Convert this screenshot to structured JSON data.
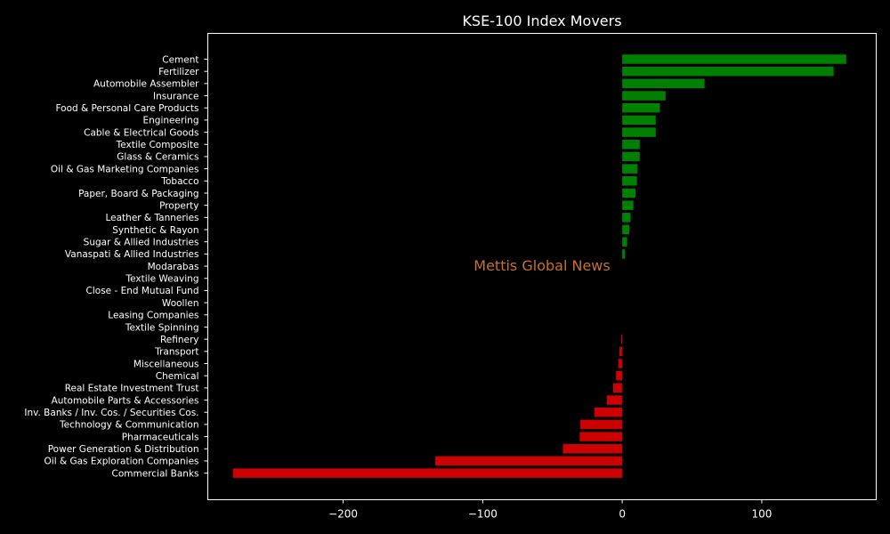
{
  "chart_data": {
    "type": "bar",
    "orientation": "horizontal",
    "title": "KSE-100 Index Movers",
    "watermark": "Mettis Global News",
    "xlabel": "",
    "ylabel": "",
    "xlim": [
      -297,
      182
    ],
    "xticks": [
      -200,
      -100,
      0,
      100
    ],
    "xtick_labels": [
      "−200",
      "−100",
      "0",
      "100"
    ],
    "grid": false,
    "colors": {
      "positive": "#008000",
      "negative": "#cc0000",
      "background": "#000000",
      "axes": "#ffffff",
      "watermark": "#c8702a"
    },
    "categories": [
      "Cement",
      "Fertilizer",
      "Automobile Assembler",
      "Insurance",
      "Food & Personal Care Products",
      "Engineering",
      "Cable & Electrical Goods",
      "Textile Composite",
      "Glass & Ceramics",
      "Oil & Gas Marketing Companies",
      "Tobacco",
      "Paper, Board & Packaging",
      "Property",
      "Leather & Tanneries",
      "Synthetic & Rayon",
      "Sugar & Allied Industries",
      "Vanaspati & Allied Industries",
      "Modarabas",
      "Textile Weaving",
      "Close - End Mutual Fund",
      "Woollen",
      "Leasing Companies",
      "Textile Spinning",
      "Refinery",
      "Transport",
      "Miscellaneous",
      "Chemical",
      "Real Estate Investment Trust",
      "Automobile Parts & Accessories",
      "Inv. Banks / Inv. Cos. / Securities Cos.",
      "Technology & Communication",
      "Pharmaceuticals",
      "Power Generation & Distribution",
      "Oil & Gas Exploration Companies",
      "Commercial Banks"
    ],
    "values": [
      160.5,
      151.5,
      59.0,
      31.0,
      27.0,
      24.0,
      24.0,
      12.5,
      12.5,
      11.0,
      10.5,
      9.5,
      8.0,
      6.0,
      5.0,
      3.5,
      2.0,
      0,
      0,
      0,
      0,
      0,
      0,
      -0.8,
      -2.0,
      -2.8,
      -4.5,
      -6.5,
      -11.0,
      -20.0,
      -30.0,
      -30.5,
      -42.5,
      -134.0,
      -279.0
    ]
  }
}
